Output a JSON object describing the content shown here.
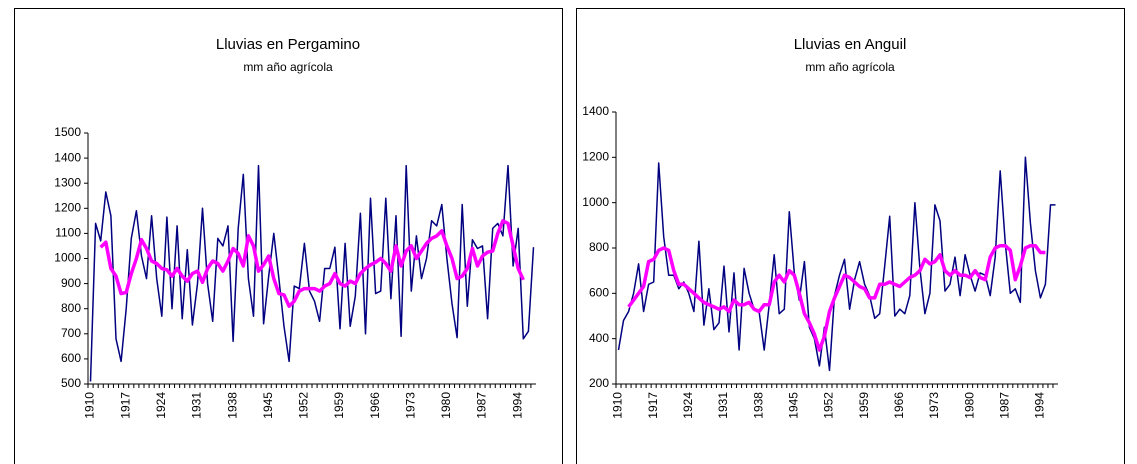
{
  "chart_data": [
    {
      "type": "line",
      "title": "Lluvias en Pergamino",
      "subtitle": "mm año agrícola",
      "categories": [
        "1910",
        null,
        null,
        null,
        null,
        null,
        null,
        "1917",
        null,
        null,
        null,
        null,
        null,
        null,
        "1924",
        null,
        null,
        null,
        null,
        null,
        null,
        "1931",
        null,
        null,
        null,
        null,
        null,
        null,
        "1938",
        null,
        null,
        null,
        null,
        null,
        null,
        "1945",
        null,
        null,
        null,
        null,
        null,
        null,
        "1952",
        null,
        null,
        null,
        null,
        null,
        null,
        "1959",
        null,
        null,
        null,
        null,
        null,
        null,
        "1966",
        null,
        null,
        null,
        null,
        null,
        null,
        "1973",
        null,
        null,
        null,
        null,
        null,
        null,
        "1980",
        null,
        null,
        null,
        null,
        null,
        null,
        "1987",
        null,
        null,
        null,
        null,
        null,
        null,
        "1994",
        null,
        null,
        null
      ],
      "series": [
        {
          "color": "#000080",
          "values": [
            510,
            1140,
            1070,
            1265,
            1170,
            680,
            590,
            800,
            1080,
            1190,
            1010,
            920,
            1170,
            920,
            770,
            1165,
            800,
            1130,
            760,
            1035,
            735,
            900,
            1200,
            900,
            750,
            1080,
            1050,
            1130,
            670,
            1120,
            1335,
            920,
            770,
            1370,
            740,
            930,
            1100,
            920,
            730,
            590,
            890,
            880,
            1060,
            870,
            830,
            750,
            960,
            960,
            1045,
            720,
            1060,
            730,
            850,
            1180,
            700,
            1240,
            860,
            870,
            1240,
            840,
            1170,
            690,
            1370,
            870,
            1090,
            920,
            1000,
            1150,
            1130,
            1215,
            1000,
            820,
            685,
            1215,
            810,
            1075,
            1040,
            1050,
            760,
            1120,
            1140,
            1090,
            1370,
            970,
            1120,
            680,
            710,
            1045
          ]
        },
        {
          "color": "#ff00ff",
          "values": [
            null,
            null,
            1045,
            1065,
            960,
            930,
            860,
            865,
            940,
            1000,
            1075,
            1040,
            990,
            980,
            960,
            955,
            930,
            960,
            930,
            910,
            940,
            950,
            905,
            960,
            990,
            980,
            950,
            990,
            1040,
            1020,
            970,
            1090,
            1050,
            950,
            975,
            1010,
            920,
            860,
            855,
            810,
            830,
            870,
            880,
            880,
            880,
            870,
            890,
            900,
            940,
            900,
            890,
            910,
            900,
            940,
            960,
            975,
            985,
            1000,
            980,
            950,
            1050,
            970,
            1030,
            1050,
            1000,
            1030,
            1060,
            1080,
            1090,
            1110,
            1050,
            1000,
            920,
            930,
            960,
            1040,
            970,
            1010,
            1025,
            1030,
            1100,
            1150,
            1140,
            1050,
            960,
            915,
            null,
            null
          ]
        }
      ],
      "ylim": [
        500,
        1500
      ],
      "yticks": [
        500,
        600,
        700,
        800,
        900,
        1000,
        1100,
        1200,
        1300,
        1400,
        1500
      ]
    },
    {
      "type": "line",
      "title": "Lluvias en Anguil",
      "subtitle": "mm año agrícola",
      "categories": [
        "1910",
        null,
        null,
        null,
        null,
        null,
        null,
        "1917",
        null,
        null,
        null,
        null,
        null,
        null,
        "1924",
        null,
        null,
        null,
        null,
        null,
        null,
        "1931",
        null,
        null,
        null,
        null,
        null,
        null,
        "1938",
        null,
        null,
        null,
        null,
        null,
        null,
        "1945",
        null,
        null,
        null,
        null,
        null,
        null,
        "1952",
        null,
        null,
        null,
        null,
        null,
        null,
        "1959",
        null,
        null,
        null,
        null,
        null,
        null,
        "1966",
        null,
        null,
        null,
        null,
        null,
        null,
        "1973",
        null,
        null,
        null,
        null,
        null,
        null,
        "1980",
        null,
        null,
        null,
        null,
        null,
        null,
        "1987",
        null,
        null,
        null,
        null,
        null,
        null,
        "1994",
        null,
        null,
        null
      ],
      "series": [
        {
          "color": "#000080",
          "values": [
            350,
            480,
            520,
            600,
            730,
            520,
            640,
            650,
            1175,
            850,
            680,
            680,
            620,
            650,
            600,
            520,
            830,
            460,
            620,
            440,
            470,
            720,
            430,
            690,
            350,
            710,
            600,
            530,
            520,
            350,
            550,
            770,
            510,
            530,
            960,
            690,
            570,
            740,
            450,
            400,
            280,
            450,
            260,
            590,
            680,
            750,
            530,
            660,
            740,
            640,
            590,
            490,
            510,
            720,
            940,
            500,
            530,
            510,
            590,
            1000,
            710,
            510,
            600,
            990,
            920,
            610,
            640,
            760,
            590,
            770,
            680,
            610,
            690,
            680,
            590,
            760,
            1140,
            820,
            600,
            620,
            560,
            1200,
            910,
            700,
            580,
            640,
            990,
            990
          ]
        },
        {
          "color": "#ff00ff",
          "values": [
            null,
            null,
            540,
            570,
            600,
            630,
            740,
            750,
            790,
            800,
            790,
            700,
            640,
            640,
            620,
            600,
            580,
            560,
            550,
            540,
            530,
            540,
            520,
            570,
            550,
            550,
            560,
            530,
            520,
            550,
            550,
            650,
            680,
            650,
            700,
            680,
            600,
            510,
            470,
            420,
            350,
            410,
            520,
            580,
            630,
            680,
            670,
            650,
            630,
            620,
            580,
            580,
            640,
            640,
            650,
            640,
            630,
            650,
            670,
            680,
            700,
            750,
            730,
            740,
            770,
            700,
            680,
            700,
            680,
            680,
            670,
            700,
            670,
            660,
            760,
            800,
            810,
            810,
            790,
            660,
            720,
            800,
            810,
            810,
            780,
            780,
            null,
            null
          ]
        }
      ],
      "ylim": [
        200,
        1400
      ],
      "yticks": [
        200,
        400,
        600,
        800,
        1000,
        1200,
        1400
      ]
    }
  ]
}
